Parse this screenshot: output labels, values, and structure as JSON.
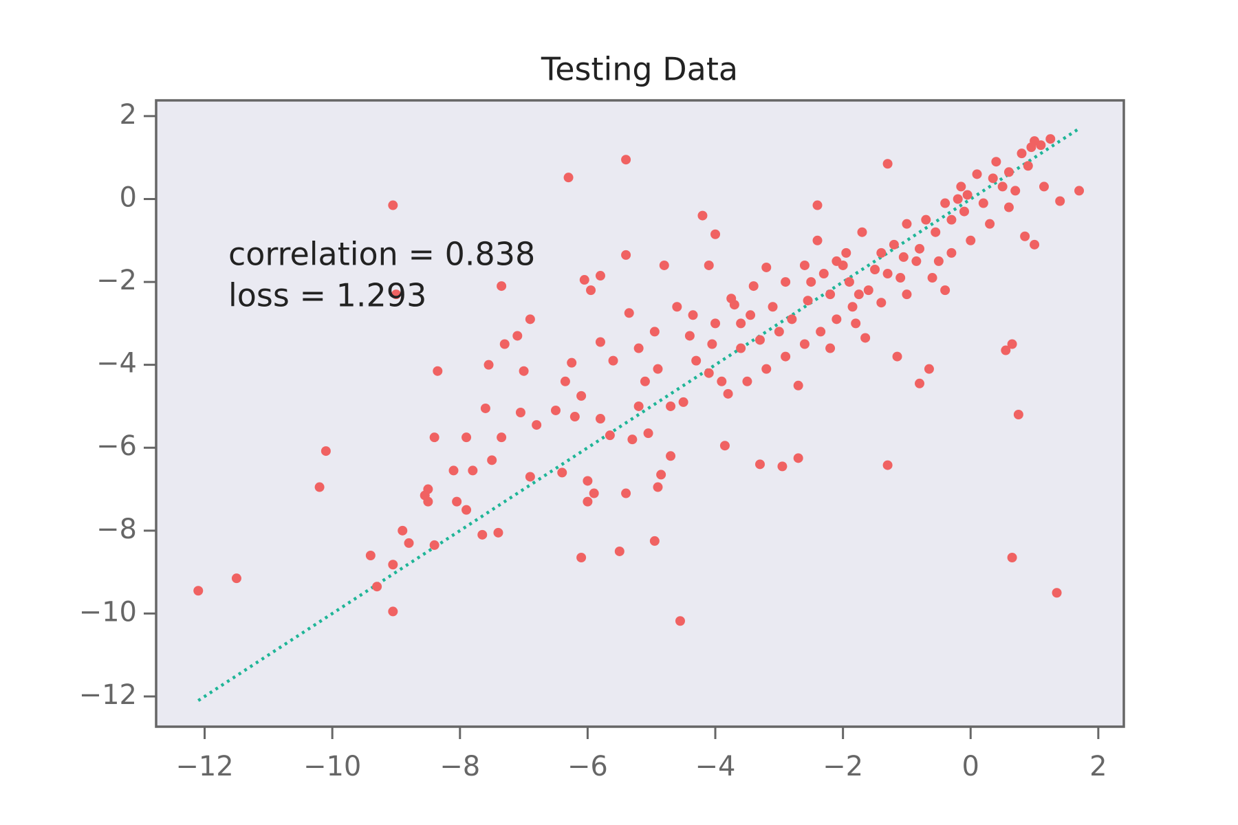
{
  "chart_data": {
    "type": "scatter",
    "title": "Testing Data",
    "annotations": [
      "correlation = 0.838",
      "loss = 1.293"
    ],
    "color": "#f06262",
    "x": [
      -12.1,
      -11.5,
      -10.2,
      -10.1,
      -9.05,
      -9.0,
      -9.05,
      -9.05,
      -9.3,
      -9.4,
      -8.9,
      -8.8,
      -8.4,
      -8.5,
      -8.5,
      -8.55,
      -8.4,
      -8.35,
      -7.35,
      -6.3,
      -5.4,
      -4.55,
      -6.1,
      -5.5,
      -4.95,
      -4.2,
      -4.0,
      -3.3,
      -2.95,
      -2.7,
      -1.3,
      0.65,
      1.35,
      0.75,
      0.65,
      0.55,
      -0.65,
      -0.8,
      -1.3,
      -2.4,
      -3.85,
      1.7,
      1.4,
      -0.4,
      -1.65,
      -1.15,
      -5.4,
      -6.05,
      -5.8,
      -5.95,
      -7.3,
      -7.1,
      -6.9,
      -7.0,
      -7.55,
      -7.6,
      -7.9,
      -7.35,
      -6.9,
      -6.4,
      -6.0,
      -5.9,
      -5.4,
      -6.0,
      -7.4,
      -7.65,
      -7.9,
      -8.05,
      -7.8,
      -7.5,
      -8.1,
      -7.05,
      -6.8,
      -6.5,
      -6.2,
      -5.8,
      -5.65,
      -5.3,
      -5.05,
      -4.85,
      -4.9,
      -4.7,
      -5.2,
      -4.7,
      -4.5,
      -6.1,
      -6.35,
      -6.25,
      -5.8,
      -5.6,
      -5.2,
      -4.95,
      -4.6,
      -5.35,
      -4.8,
      -4.1,
      -4.35,
      -4.05,
      -3.7,
      -3.6,
      -3.4,
      -3.2,
      -2.9,
      -2.55,
      -2.4,
      -2.1,
      -1.9,
      -1.75,
      -1.5,
      -1.2,
      -1.0,
      -0.7,
      -0.4,
      -0.15,
      0.1,
      0.4,
      0.8,
      1.0,
      1.1,
      0.9,
      0.5,
      0.2,
      -0.1,
      -0.3,
      -0.55,
      -0.8,
      -1.05,
      -1.3,
      -1.6,
      -1.85,
      -2.1,
      -2.35,
      -2.6,
      -2.9,
      -3.2,
      -3.5,
      -3.8,
      -4.1,
      -4.3,
      -4.0,
      -3.75,
      -3.45,
      -3.1,
      -2.8,
      -2.5,
      -2.2,
      -1.95,
      -1.7,
      -1.4,
      -1.1,
      -0.85,
      -0.6,
      -0.3,
      0.0,
      0.3,
      0.6,
      0.85,
      1.0,
      1.15,
      0.7,
      0.35,
      -0.05,
      -2.3,
      -2.0,
      -2.6,
      -3.0,
      -3.3,
      -3.6,
      -4.4,
      -4.9,
      -5.1,
      -3.9,
      -2.7,
      -2.2,
      -1.8,
      -1.4,
      -1.0,
      -0.5,
      1.25,
      0.95,
      0.6,
      -0.2
    ],
    "values": [
      -9.45,
      -9.15,
      -6.95,
      -6.08,
      -0.15,
      -2.3,
      -9.95,
      -8.82,
      -9.35,
      -8.6,
      -8.0,
      -8.3,
      -8.35,
      -7.3,
      -7.0,
      -7.15,
      -5.75,
      -4.15,
      -2.1,
      0.52,
      0.95,
      -10.18,
      -8.65,
      -8.5,
      -8.25,
      -0.4,
      -0.85,
      -6.4,
      -6.45,
      -6.25,
      -6.42,
      -8.65,
      -9.5,
      -5.2,
      -3.5,
      -3.65,
      -4.1,
      -4.45,
      0.85,
      -0.15,
      -5.95,
      0.2,
      -0.05,
      -2.2,
      -3.35,
      -3.8,
      -1.35,
      -1.95,
      -1.85,
      -2.2,
      -3.5,
      -3.3,
      -2.9,
      -4.15,
      -4.0,
      -5.05,
      -5.75,
      -5.75,
      -6.7,
      -6.6,
      -6.8,
      -7.1,
      -7.1,
      -7.3,
      -8.05,
      -8.1,
      -7.5,
      -7.3,
      -6.55,
      -6.3,
      -6.55,
      -5.15,
      -5.45,
      -5.1,
      -5.25,
      -5.3,
      -5.7,
      -5.8,
      -5.65,
      -6.65,
      -6.95,
      -6.2,
      -5.0,
      -5.0,
      -4.9,
      -4.75,
      -4.4,
      -3.95,
      -3.45,
      -3.9,
      -3.6,
      -3.2,
      -2.6,
      -2.75,
      -1.6,
      -1.6,
      -2.8,
      -3.5,
      -2.55,
      -3.0,
      -2.1,
      -1.65,
      -2.0,
      -2.45,
      -1.0,
      -1.5,
      -2.0,
      -2.3,
      -1.7,
      -1.1,
      -0.6,
      -0.5,
      -0.1,
      0.3,
      0.6,
      0.9,
      1.1,
      1.4,
      1.3,
      0.8,
      0.3,
      -0.1,
      -0.3,
      -0.5,
      -0.8,
      -1.2,
      -1.4,
      -1.8,
      -2.2,
      -2.6,
      -2.9,
      -3.2,
      -3.5,
      -3.8,
      -4.1,
      -4.4,
      -4.7,
      -4.2,
      -3.9,
      -3.0,
      -2.4,
      -2.8,
      -2.6,
      -2.9,
      -2.0,
      -2.3,
      -1.3,
      -0.8,
      -1.3,
      -1.9,
      -1.5,
      -1.9,
      -1.3,
      -1.0,
      -0.6,
      -0.2,
      -0.9,
      -1.1,
      0.3,
      0.2,
      0.5,
      0.1,
      -1.8,
      -1.6,
      -1.6,
      -3.2,
      -3.4,
      -3.6,
      -3.3,
      -4.1,
      -4.4,
      -4.4,
      -4.5,
      -3.6,
      -3.0,
      -2.5,
      -2.3,
      -1.5,
      1.45,
      1.25,
      0.65,
      0.0
    ],
    "fit": {
      "x": [
        -12.1,
        1.7
      ],
      "values": [
        -12.1,
        1.7
      ],
      "color": "#1fb597"
    },
    "xlim": [
      -12.76,
      2.4
    ],
    "ylim": [
      -12.73,
      2.38
    ],
    "xticks": [
      {
        "value": -12,
        "label": "−12"
      },
      {
        "value": -10,
        "label": "−10"
      },
      {
        "value": -8,
        "label": "−8"
      },
      {
        "value": -6,
        "label": "−6"
      },
      {
        "value": -4,
        "label": "−4"
      },
      {
        "value": -2,
        "label": "−2"
      },
      0,
      2
    ],
    "yticks": [
      {
        "value": -12,
        "label": "−12"
      },
      {
        "value": -10,
        "label": "−10"
      },
      {
        "value": -8,
        "label": "−8"
      },
      {
        "value": -6,
        "label": "−6"
      },
      {
        "value": -4,
        "label": "−4"
      },
      {
        "value": -2,
        "label": "−2"
      },
      0,
      2
    ],
    "grid": false
  }
}
